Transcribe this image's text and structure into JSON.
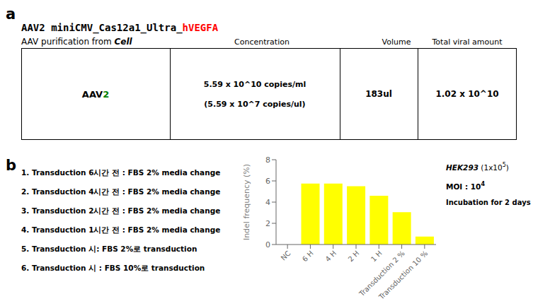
{
  "chart_data": {
    "type": "bar",
    "categories": [
      "NC",
      "6 H",
      "4 H",
      "2 H",
      "1 H",
      "Transduction 2 %",
      "Transduction 10 %"
    ],
    "values": [
      0.0,
      5.75,
      5.75,
      5.5,
      4.6,
      3.05,
      0.75
    ],
    "color": "#FFFF00",
    "ylabel": "Indel frequency (%)",
    "ylim": [
      0,
      8
    ],
    "yticks": [
      0,
      2,
      4,
      6,
      8
    ],
    "grid": false,
    "annotations": [
      {
        "text": "a"
      },
      {
        "text": "AAV2 miniCMV_Cas12a1_Ultra_"
      },
      {
        "text": "hVEGFA",
        "color": "#ff0000"
      },
      {
        "text": "AAV purification from "
      },
      {
        "text": "Cell"
      },
      {
        "text": "Concentration"
      },
      {
        "text": "Volume"
      },
      {
        "text": "Total viral amount"
      },
      {
        "text": "AAV"
      },
      {
        "text": "2",
        "color": "#008000"
      },
      {
        "text": "5.59 x 10^10 copies/ml"
      },
      {
        "text": "(5.59 x 10^7 copies/ul)"
      },
      {
        "text": "183ul"
      },
      {
        "text": "1.02 x 10^10"
      },
      {
        "text": "b"
      },
      {
        "text": "1. Transduction 6시간 전 : FBS 2% media change"
      },
      {
        "text": "2. Transduction 4시간 전 : FBS 2% media change"
      },
      {
        "text": "3. Transduction 2시간 전 : FBS 2% media change"
      },
      {
        "text": "4. Transduction 1시간 전 : FBS 2% media change"
      },
      {
        "text": "5. Transduction 시: FBS 2%로 transduction"
      },
      {
        "text": "6. Transduction 시 : FBS 10%로 transduction"
      },
      {
        "text": "HEK293"
      },
      {
        "text": "(1x10"
      },
      {
        "text": "5"
      },
      {
        "text": ")"
      },
      {
        "text": "MOI : 10"
      },
      {
        "text": "4"
      },
      {
        "text": "Incubation for 2 days"
      }
    ]
  }
}
